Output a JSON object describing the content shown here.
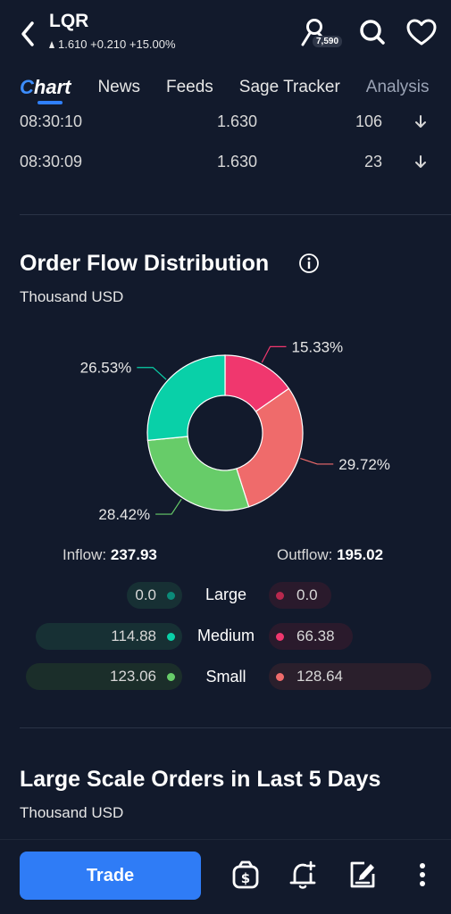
{
  "header": {
    "ticker": "LQR",
    "quote": "1.610 +0.210 +15.00%",
    "badge": "7,590",
    "icons": [
      "back-chevron-icon",
      "user-search-icon",
      "search-icon",
      "heart-icon"
    ]
  },
  "tabs": [
    {
      "label_prefix": "C",
      "label_rest": "hart"
    },
    {
      "label": "News"
    },
    {
      "label": "Feeds"
    },
    {
      "label": "Sage Tracker"
    },
    {
      "label": "Analysis"
    }
  ],
  "trades": [
    {
      "time": "08:30:10",
      "price": "1.630",
      "volume": "106",
      "icon": "arrow-down-icon"
    },
    {
      "time": "08:30:09",
      "price": "1.630",
      "volume": "23",
      "icon": "arrow-down-icon"
    }
  ],
  "order_flow": {
    "title": "Order Flow Distribution",
    "unit": "Thousand USD",
    "inflow_label": "Inflow:",
    "inflow_value": "237.93",
    "outflow_label": "Outflow:",
    "outflow_value": "195.02",
    "categories": [
      {
        "label": "Large",
        "inflow": "0.0",
        "outflow": "0.0"
      },
      {
        "label": "Medium",
        "inflow": "114.88",
        "outflow": "66.38"
      },
      {
        "label": "Small",
        "inflow": "123.06",
        "outflow": "128.64"
      }
    ]
  },
  "chart_data": {
    "type": "pie",
    "slices": [
      {
        "name": "Medium outflow",
        "value": 15.33,
        "label": "15.33%",
        "color": "#f0376e"
      },
      {
        "name": "Small outflow",
        "value": 29.72,
        "label": "29.72%",
        "color": "#ef6b6b"
      },
      {
        "name": "Small inflow",
        "value": 28.42,
        "label": "28.42%",
        "color": "#67cc69"
      },
      {
        "name": "Medium inflow",
        "value": 26.53,
        "label": "26.53%",
        "color": "#09d0a8"
      }
    ]
  },
  "large_orders": {
    "title": "Large Scale Orders in Last 5 Days",
    "unit": "Thousand USD"
  },
  "bottom_bar": {
    "trade_label": "Trade",
    "icons": [
      "money-bag-icon",
      "bell-add-icon",
      "edit-note-icon",
      "more-vertical-icon"
    ]
  },
  "colors": {
    "background": "#121a2c",
    "accent": "#2f7cf6",
    "inflow_large": "#0b8a78",
    "inflow_medium": "#09d0a8",
    "inflow_small": "#67cc69",
    "outflow_large": "#b8284d",
    "outflow_medium": "#f0376e",
    "outflow_small": "#ef6b6b"
  }
}
